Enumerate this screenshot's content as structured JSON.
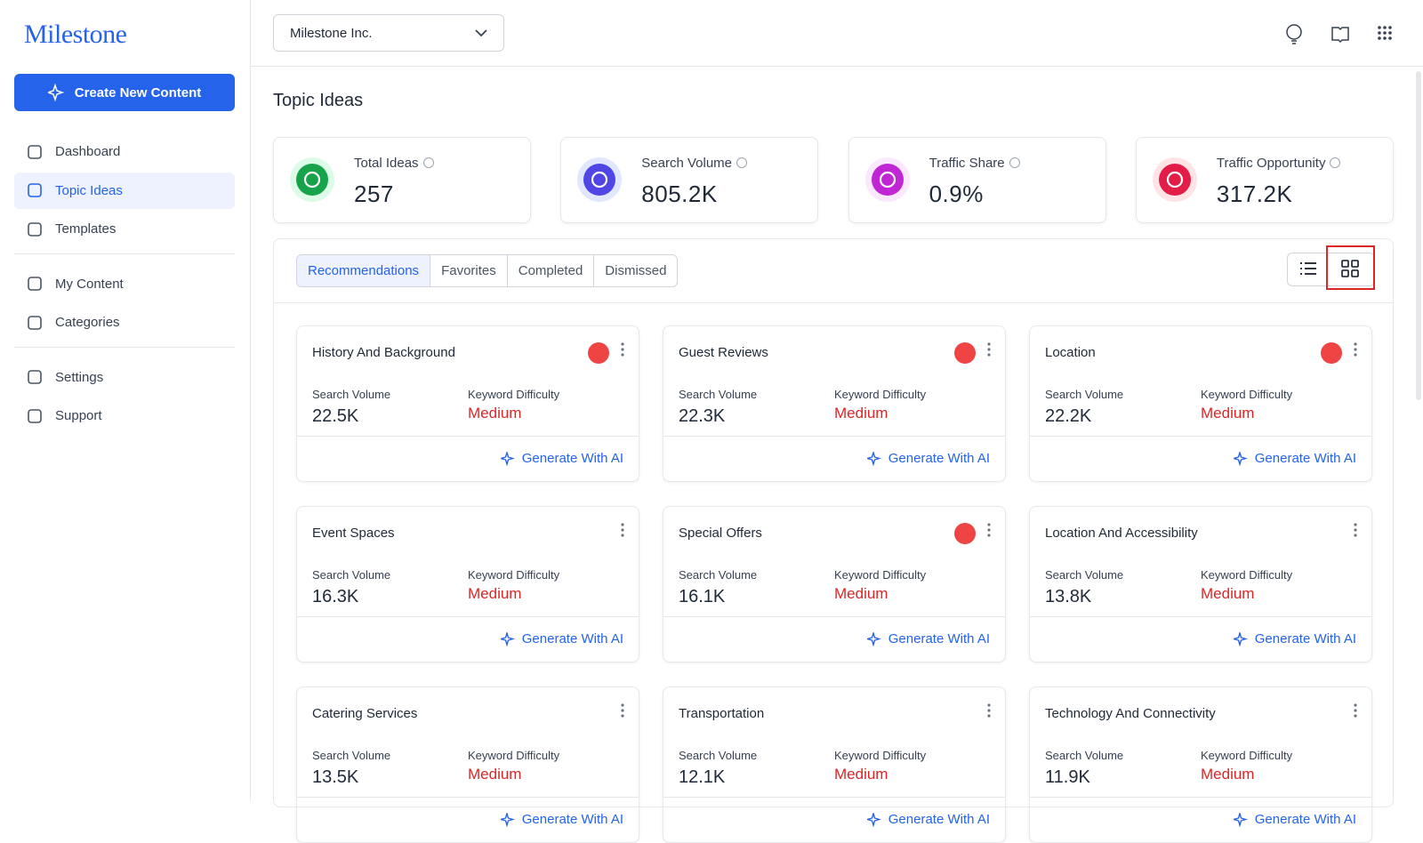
{
  "sidebar": {
    "logo": "Milestone",
    "create_button": "Create New Content",
    "nav_groups": [
      [
        {
          "label": "Dashboard",
          "active": false
        },
        {
          "label": "Topic Ideas",
          "active": true
        },
        {
          "label": "Templates",
          "active": false
        }
      ],
      [
        {
          "label": "My Content",
          "active": false
        },
        {
          "label": "Categories",
          "active": false
        }
      ],
      [
        {
          "label": "Settings",
          "active": false
        },
        {
          "label": "Support",
          "active": false
        }
      ]
    ]
  },
  "header": {
    "organization": "Milestone Inc."
  },
  "page": {
    "title": "Topic Ideas",
    "stats": [
      {
        "label": "Total Ideas",
        "value": "257",
        "color": "#16a34a",
        "bg": "#dcfce7"
      },
      {
        "label": "Search Volume",
        "value": "805.2K",
        "color": "#4f46e5",
        "bg": "#e0e7ff"
      },
      {
        "label": "Traffic Share",
        "value": "0.9%",
        "color": "#c026d3",
        "bg": "#fae8ff"
      },
      {
        "label": "Traffic Opportunity",
        "value": "317.2K",
        "color": "#e11d48",
        "bg": "#ffe4e6"
      }
    ],
    "tabs": [
      {
        "label": "Recommendations",
        "active": true
      },
      {
        "label": "Favorites",
        "active": false
      },
      {
        "label": "Completed",
        "active": false
      },
      {
        "label": "Dismissed",
        "active": false
      }
    ],
    "card_labels": {
      "search_volume": "Search Volume",
      "keyword_difficulty": "Keyword Difficulty",
      "generate": "Generate With AI"
    },
    "cards": [
      {
        "title": "History And Background",
        "hot": true,
        "search_volume": "22.5K",
        "difficulty": "Medium"
      },
      {
        "title": "Guest Reviews",
        "hot": true,
        "search_volume": "22.3K",
        "difficulty": "Medium"
      },
      {
        "title": "Location",
        "hot": true,
        "search_volume": "22.2K",
        "difficulty": "Medium"
      },
      {
        "title": "Event Spaces",
        "hot": false,
        "search_volume": "16.3K",
        "difficulty": "Medium"
      },
      {
        "title": "Special Offers",
        "hot": true,
        "search_volume": "16.1K",
        "difficulty": "Medium"
      },
      {
        "title": "Location And Accessibility",
        "hot": false,
        "search_volume": "13.8K",
        "difficulty": "Medium"
      },
      {
        "title": "Catering Services",
        "hot": false,
        "search_volume": "13.5K",
        "difficulty": "Medium"
      },
      {
        "title": "Transportation",
        "hot": false,
        "search_volume": "12.1K",
        "difficulty": "Medium"
      },
      {
        "title": "Technology And Connectivity",
        "hot": false,
        "search_volume": "11.9K",
        "difficulty": "Medium"
      }
    ]
  }
}
